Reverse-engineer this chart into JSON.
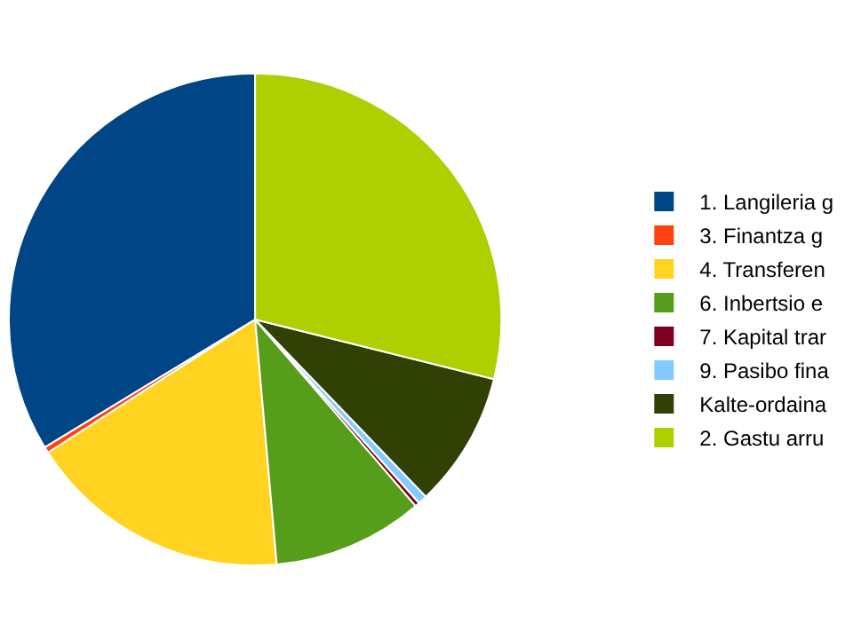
{
  "chart_data": {
    "type": "pie",
    "categories": [
      "1. Langileria g",
      "3. Finantza g",
      "4. Transferen",
      "6. Inbertsio e",
      "7. Kapital trar",
      "9. Pasibo fina",
      "Kalte-ordaina",
      "2. Gastu arru"
    ],
    "values": [
      33.7,
      0.4,
      17.3,
      9.9,
      0.3,
      0.6,
      8.9,
      28.9
    ],
    "colors": [
      "#004586",
      "#ff420e",
      "#ffd320",
      "#579d1c",
      "#7e0021",
      "#83caff",
      "#314004",
      "#aecf00"
    ],
    "legend": "right"
  }
}
